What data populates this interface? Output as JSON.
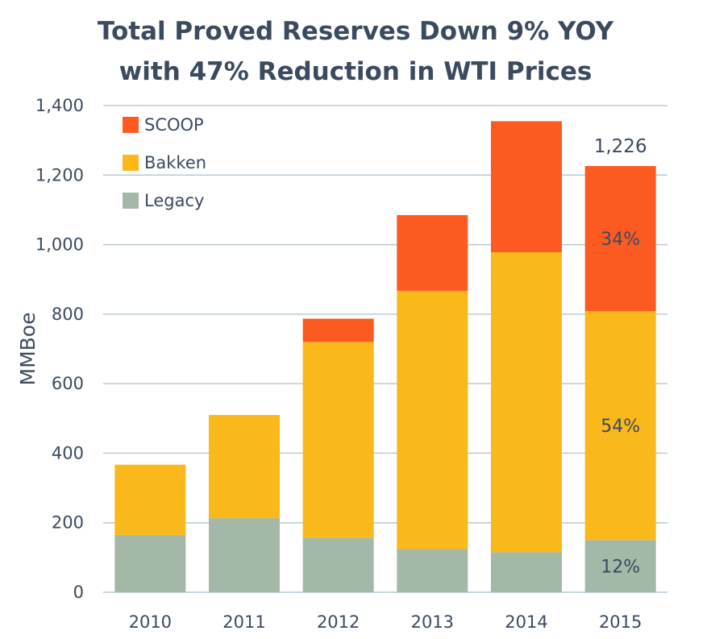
{
  "title_lines": [
    "Total Proved Reserves Down 9% YOY",
    "with 47% Reduction in WTI Prices"
  ],
  "chart_data": {
    "type": "bar",
    "stacked": true,
    "categories": [
      "2010",
      "2011",
      "2012",
      "2013",
      "2014",
      "2015"
    ],
    "series": [
      {
        "name": "Legacy",
        "color": "#a3b8a6",
        "values": [
          165,
          213,
          157,
          125,
          115,
          150
        ]
      },
      {
        "name": "Bakken",
        "color": "#fab81b",
        "values": [
          202,
          297,
          563,
          742,
          863,
          659
        ]
      },
      {
        "name": "SCOOP",
        "color": "#fd5a22",
        "values": [
          0,
          0,
          67,
          218,
          377,
          417
        ]
      }
    ],
    "ylabel": "MMBoe",
    "xlabel": "",
    "ylim": [
      0,
      1400
    ],
    "yticks": [
      "0",
      "200",
      "400",
      "600",
      "800",
      "1,000",
      "1,200",
      "1,400"
    ],
    "grid": true,
    "legend_position": "top-left",
    "legend_order": [
      "SCOOP",
      "Bakken",
      "Legacy"
    ],
    "annotations": [
      {
        "category": "2015",
        "text": "1,226",
        "position": "above"
      },
      {
        "category": "2015",
        "series": "SCOOP",
        "text": "34%"
      },
      {
        "category": "2015",
        "series": "Bakken",
        "text": "54%"
      },
      {
        "category": "2015",
        "series": "Legacy",
        "text": "12%"
      }
    ]
  }
}
